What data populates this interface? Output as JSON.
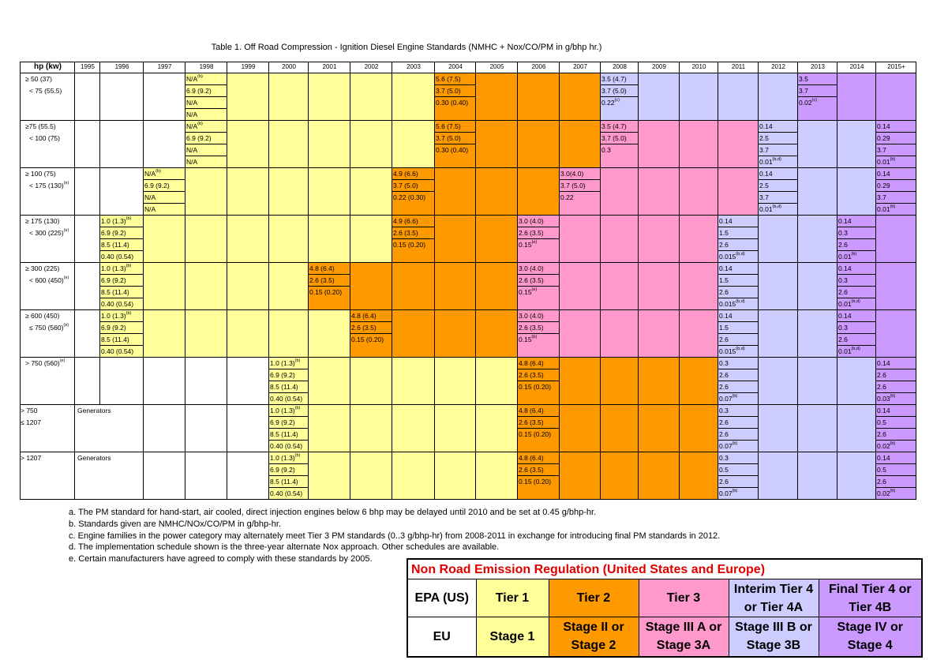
{
  "caption": "Table 1.  Off Road Compression - Ignition Diesel Engine Standards (NMHC + Nox/CO/PM in g/bhp hr.)",
  "colors": {
    "tier1": "#ffff99",
    "tier2": "#ff9900",
    "tier3": "#ff99cc",
    "interim4": "#ccccff",
    "final4": "#cc99ff"
  },
  "header": {
    "hp": "hp (kw)",
    "years": [
      "1995",
      "1996",
      "1997",
      "1998",
      "1999",
      "2000",
      "2001",
      "2002",
      "2003",
      "2004",
      "2005",
      "2006",
      "2007",
      "2008",
      "2009",
      "2010",
      "2011",
      "2012",
      "2013",
      "2014",
      "2015+"
    ]
  },
  "rows": [
    {
      "hp1": "≥ 50 (37)",
      "hp2": "< 75 (55.5)"
    },
    {
      "hp1": "≥75 (55.5)",
      "hp2": "< 100 (75)"
    },
    {
      "hp1": "≥ 100 (75)",
      "hp2": "< 175 (130)",
      "hp2_sup": "(e)"
    },
    {
      "hp1": "≥ 175 (130)",
      "hp2": "< 300 (225)",
      "hp2_sup": "(e)"
    },
    {
      "hp1": "≥ 300 (225)",
      "hp2": "< 600 (450)",
      "hp2_sup": "(e)"
    },
    {
      "hp1": "≥ 600 (450)",
      "hp2": "≤ 750 (560)",
      "hp2_sup": "(e)"
    },
    {
      "hp1": "> 750 (560)",
      "hp1_sup": "(e)",
      "hp2": ""
    },
    {
      "hp1": "> 750",
      "hp2": "≤ 1207",
      "gen": "Generators"
    },
    {
      "hp1": "> 1207",
      "hp2": "",
      "gen": "Generators"
    }
  ],
  "vals": {
    "na": "N/A",
    "t1_na_b": "N/A",
    "v69": "6.9 (9.2)",
    "v10": "1.0 (1.3)",
    "v85": "8.5 (11.4)",
    "v040": "0.40 (0.54)",
    "v56": "5.6 (7.5)",
    "v37_50": "3.7 (5.0)",
    "v030": "0.30 (0.40)",
    "v35": "3.5 (4.7)",
    "v022c": "0.22",
    "v03": "0.3",
    "v49": "4.9 (6.6)",
    "v022_030": "0.22 (0.30)",
    "v30_40a": "3.0(4.0)",
    "v022": "0.22",
    "v26_35": "2.6 (3.5)",
    "v015_020": "0.15 (0.20)",
    "v30_40": "3.0 (4.0)",
    "v015": "0.15",
    "v48": "4.8 (6.4)",
    "n014": "0.14",
    "n15": "1.5",
    "n26": "2.6",
    "n0015": "0.015",
    "n03": "0.3",
    "n001": "0.01",
    "n25": "2.5",
    "n37": "3.7",
    "n029": "0.29",
    "n35": "3.5",
    "n002": "0.02",
    "n007": "0.07",
    "n05": "0.5",
    "n003": "0.03",
    "sb": "(b)",
    "sc": "(c)",
    "se": "(e)",
    "sbd": "(b,d)"
  },
  "notes": [
    "a. The PM standard for hand-start, air cooled, direct injection engines below 6 bhp may be delayed until 2010 and be set at 0.45 g/bhp-hr.",
    "b. Standards given are NMHC/NOx/CO/PM in g/bhp-hr.",
    "c. Engine families in the power category may alternately meet Tier 3 PM standards (0..3 g/bhp-hr) from 2008-2011 in exchange for introducing final PM standards in 2012.",
    "d. The implementation schedule shown is the three-year alternate Nox approach. Other schedules are available.",
    "e. Certain manufacturers have agreed to comply with these standards by 2005."
  ],
  "legend": {
    "title": "Non Road Emission Regulation (United States and Europe)",
    "epa": "EPA (US)",
    "eu": "EU",
    "tier1": "Tier 1",
    "tier2": "Tier 2",
    "tier3": "Tier 3",
    "interim4_a": "Interim Tier 4",
    "interim4_b": "or Tier 4A",
    "final4_a": "Final Tier 4 or",
    "final4_b": "Tier 4B",
    "stage1": "Stage 1",
    "stage2_a": "Stage II or",
    "stage2_b": "Stage 2",
    "stage3a_a": "Stage III A or",
    "stage3a_b": "Stage 3A",
    "stage3b_a": "Stage III B or",
    "stage3b_b": "Stage 3B",
    "stage4_a": "Stage IV or",
    "stage4_b": "Stage 4"
  }
}
